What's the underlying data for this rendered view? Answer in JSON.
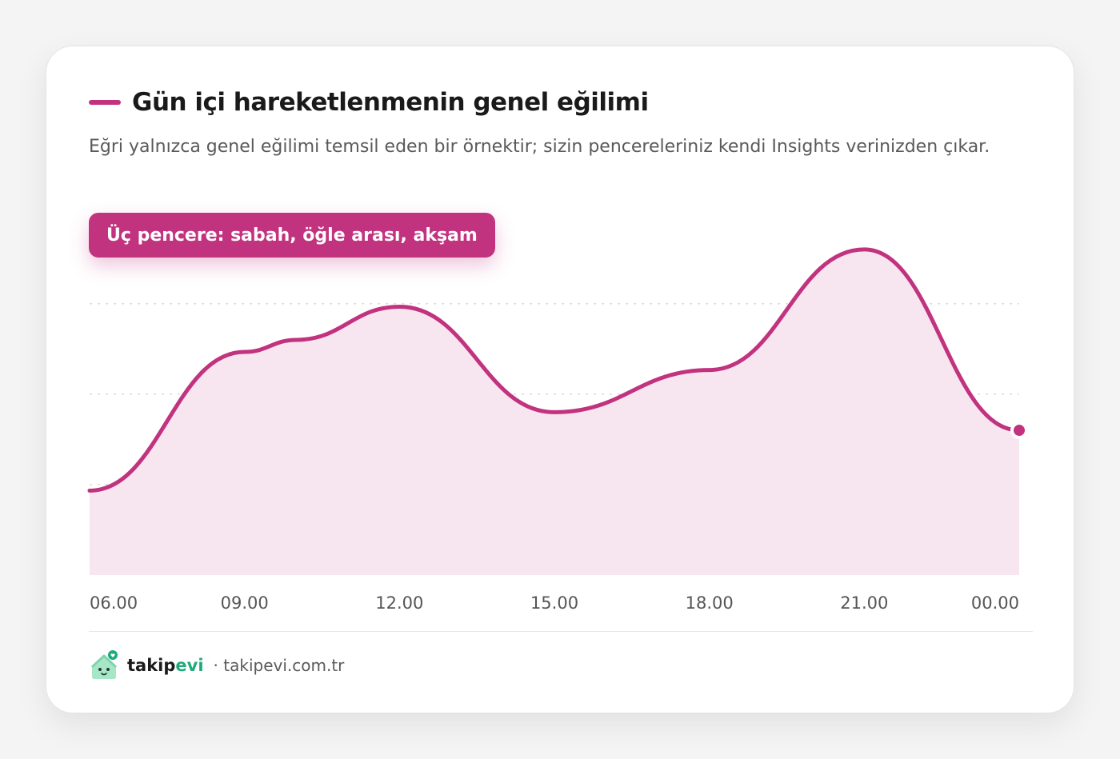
{
  "colors": {
    "accent": "#c2337f",
    "area_fill": "#f7e6f0",
    "grid": "#dcdcdc",
    "axis_text": "#555555",
    "brand_green": "#1eaa7a"
  },
  "header": {
    "title": "Gün içi hareketlenmenin genel eğilimi",
    "subtitle": "Eğri yalnızca genel eğilimi temsil eden bir örnektir; sizin pencereleriniz kendi Insights verinizden çıkar.",
    "pill_label": "Üç pencere: sabah, öğle arası, akşam"
  },
  "chart_data": {
    "type": "area",
    "title": "Gün içi hareketlenmenin genel eğilimi",
    "xlabel": "",
    "ylabel": "",
    "x_ticks": [
      "06.00",
      "09.00",
      "12.00",
      "15.00",
      "18.00",
      "21.00",
      "00.00"
    ],
    "y_axis_visible": false,
    "grid": true,
    "ylim": [
      0,
      100
    ],
    "gridlines": [
      30,
      60,
      90
    ],
    "series": [
      {
        "x": [
          "06.00",
          "09.00",
          "10.00",
          "12.00",
          "15.00",
          "18.00",
          "21.00",
          "00.00"
        ],
        "values": [
          28,
          74,
          78,
          89,
          54,
          68,
          108,
          48
        ],
        "end_marker": true
      }
    ]
  },
  "footer": {
    "brand_part1": "takip",
    "brand_part2": "evi",
    "domain": "· takipevi.com.tr",
    "logo_icon": "house-mascot-icon"
  }
}
